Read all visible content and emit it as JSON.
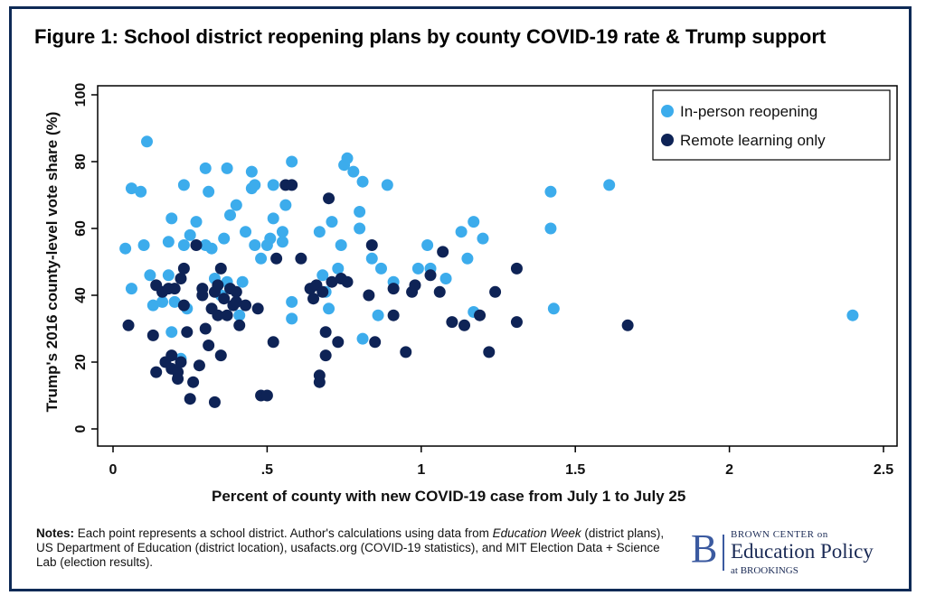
{
  "title": "Figure 1: School district reopening plans by county COVID-19 rate & Trump support",
  "chart_data": {
    "type": "scatter",
    "xlabel": "Percent of county with new COVID-19 case from July 1 to July 25",
    "ylabel": "Trump's 2016 county-level vote share (%)",
    "xlim": [
      0,
      2.5
    ],
    "ylim": [
      0,
      100
    ],
    "x_ticks": [
      0,
      0.5,
      1,
      1.5,
      2,
      2.5
    ],
    "x_tick_labels": [
      "0",
      ".5",
      "1",
      "1.5",
      "2",
      "2.5"
    ],
    "y_ticks": [
      0,
      20,
      40,
      60,
      80,
      100
    ],
    "y_tick_labels": [
      "0",
      "20",
      "40",
      "60",
      "80",
      "100"
    ],
    "legend_position": "top-right",
    "grid": false,
    "series": [
      {
        "name": "In-person reopening",
        "color": "#3cacec",
        "points": [
          [
            0.04,
            54
          ],
          [
            0.06,
            42
          ],
          [
            0.06,
            72
          ],
          [
            0.09,
            71
          ],
          [
            0.1,
            55
          ],
          [
            0.11,
            86
          ],
          [
            0.12,
            46
          ],
          [
            0.13,
            37
          ],
          [
            0.16,
            38
          ],
          [
            0.18,
            46
          ],
          [
            0.18,
            56
          ],
          [
            0.19,
            29
          ],
          [
            0.19,
            63
          ],
          [
            0.2,
            38
          ],
          [
            0.22,
            21
          ],
          [
            0.23,
            73
          ],
          [
            0.23,
            55
          ],
          [
            0.24,
            36
          ],
          [
            0.25,
            58
          ],
          [
            0.27,
            62
          ],
          [
            0.3,
            78
          ],
          [
            0.3,
            55
          ],
          [
            0.31,
            71
          ],
          [
            0.32,
            54
          ],
          [
            0.33,
            45
          ],
          [
            0.35,
            40
          ],
          [
            0.36,
            57
          ],
          [
            0.37,
            78
          ],
          [
            0.37,
            44
          ],
          [
            0.38,
            64
          ],
          [
            0.4,
            67
          ],
          [
            0.41,
            34
          ],
          [
            0.42,
            44
          ],
          [
            0.43,
            59
          ],
          [
            0.45,
            72
          ],
          [
            0.45,
            77
          ],
          [
            0.46,
            73
          ],
          [
            0.46,
            55
          ],
          [
            0.48,
            51
          ],
          [
            0.5,
            55
          ],
          [
            0.51,
            57
          ],
          [
            0.52,
            63
          ],
          [
            0.52,
            73
          ],
          [
            0.55,
            56
          ],
          [
            0.55,
            59
          ],
          [
            0.56,
            67
          ],
          [
            0.58,
            80
          ],
          [
            0.58,
            38
          ],
          [
            0.58,
            33
          ],
          [
            0.67,
            59
          ],
          [
            0.68,
            46
          ],
          [
            0.69,
            41
          ],
          [
            0.7,
            36
          ],
          [
            0.71,
            62
          ],
          [
            0.73,
            48
          ],
          [
            0.74,
            55
          ],
          [
            0.75,
            79
          ],
          [
            0.76,
            81
          ],
          [
            0.78,
            77
          ],
          [
            0.8,
            65
          ],
          [
            0.8,
            60
          ],
          [
            0.81,
            74
          ],
          [
            0.81,
            27
          ],
          [
            0.84,
            51
          ],
          [
            0.86,
            34
          ],
          [
            0.87,
            48
          ],
          [
            0.89,
            73
          ],
          [
            0.91,
            44
          ],
          [
            0.99,
            48
          ],
          [
            1.02,
            55
          ],
          [
            1.03,
            48
          ],
          [
            1.08,
            45
          ],
          [
            1.13,
            59
          ],
          [
            1.15,
            51
          ],
          [
            1.17,
            62
          ],
          [
            1.17,
            35
          ],
          [
            1.2,
            57
          ],
          [
            1.42,
            71
          ],
          [
            1.42,
            60
          ],
          [
            1.43,
            36
          ],
          [
            1.61,
            73
          ],
          [
            2.4,
            34
          ]
        ]
      },
      {
        "name": "Remote learning only",
        "color": "#0e2356",
        "points": [
          [
            0.05,
            31
          ],
          [
            0.13,
            28
          ],
          [
            0.14,
            17
          ],
          [
            0.14,
            43
          ],
          [
            0.16,
            41
          ],
          [
            0.17,
            20
          ],
          [
            0.18,
            42
          ],
          [
            0.19,
            22
          ],
          [
            0.19,
            18
          ],
          [
            0.2,
            42
          ],
          [
            0.21,
            17
          ],
          [
            0.21,
            15
          ],
          [
            0.22,
            45
          ],
          [
            0.22,
            20
          ],
          [
            0.23,
            48
          ],
          [
            0.23,
            37
          ],
          [
            0.24,
            29
          ],
          [
            0.25,
            9
          ],
          [
            0.26,
            14
          ],
          [
            0.27,
            55
          ],
          [
            0.28,
            19
          ],
          [
            0.29,
            40
          ],
          [
            0.29,
            42
          ],
          [
            0.3,
            30
          ],
          [
            0.31,
            25
          ],
          [
            0.32,
            36
          ],
          [
            0.33,
            8
          ],
          [
            0.33,
            41
          ],
          [
            0.34,
            43
          ],
          [
            0.34,
            34
          ],
          [
            0.35,
            48
          ],
          [
            0.35,
            22
          ],
          [
            0.36,
            39
          ],
          [
            0.37,
            34
          ],
          [
            0.38,
            42
          ],
          [
            0.39,
            37
          ],
          [
            0.4,
            41
          ],
          [
            0.4,
            38
          ],
          [
            0.41,
            31
          ],
          [
            0.43,
            37
          ],
          [
            0.47,
            36
          ],
          [
            0.48,
            10
          ],
          [
            0.5,
            10
          ],
          [
            0.52,
            26
          ],
          [
            0.53,
            51
          ],
          [
            0.56,
            73
          ],
          [
            0.58,
            73
          ],
          [
            0.61,
            51
          ],
          [
            0.64,
            42
          ],
          [
            0.65,
            39
          ],
          [
            0.66,
            43
          ],
          [
            0.67,
            16
          ],
          [
            0.67,
            14
          ],
          [
            0.68,
            41
          ],
          [
            0.69,
            22
          ],
          [
            0.69,
            29
          ],
          [
            0.7,
            69
          ],
          [
            0.71,
            44
          ],
          [
            0.73,
            26
          ],
          [
            0.74,
            45
          ],
          [
            0.76,
            44
          ],
          [
            0.83,
            40
          ],
          [
            0.84,
            55
          ],
          [
            0.85,
            26
          ],
          [
            0.91,
            42
          ],
          [
            0.91,
            34
          ],
          [
            0.95,
            23
          ],
          [
            0.97,
            41
          ],
          [
            0.98,
            43
          ],
          [
            1.03,
            46
          ],
          [
            1.06,
            41
          ],
          [
            1.07,
            53
          ],
          [
            1.1,
            32
          ],
          [
            1.14,
            31
          ],
          [
            1.19,
            34
          ],
          [
            1.22,
            23
          ],
          [
            1.24,
            41
          ],
          [
            1.31,
            48
          ],
          [
            1.31,
            32
          ],
          [
            1.67,
            31
          ]
        ]
      }
    ]
  },
  "notes": {
    "label": "Notes:",
    "part1": " Each point represents a school district. Author's calculations using data from ",
    "source1": "Education Week",
    "part2": " (district plans), US Department of Education (district location), usafacts.org (COVID-19 statistics), and MIT Election Data + Science Lab (election results)."
  },
  "logo": {
    "letter": "B",
    "line1": "BROWN CENTER on",
    "line2": "Education Policy",
    "line3": "at BROOKINGS"
  }
}
